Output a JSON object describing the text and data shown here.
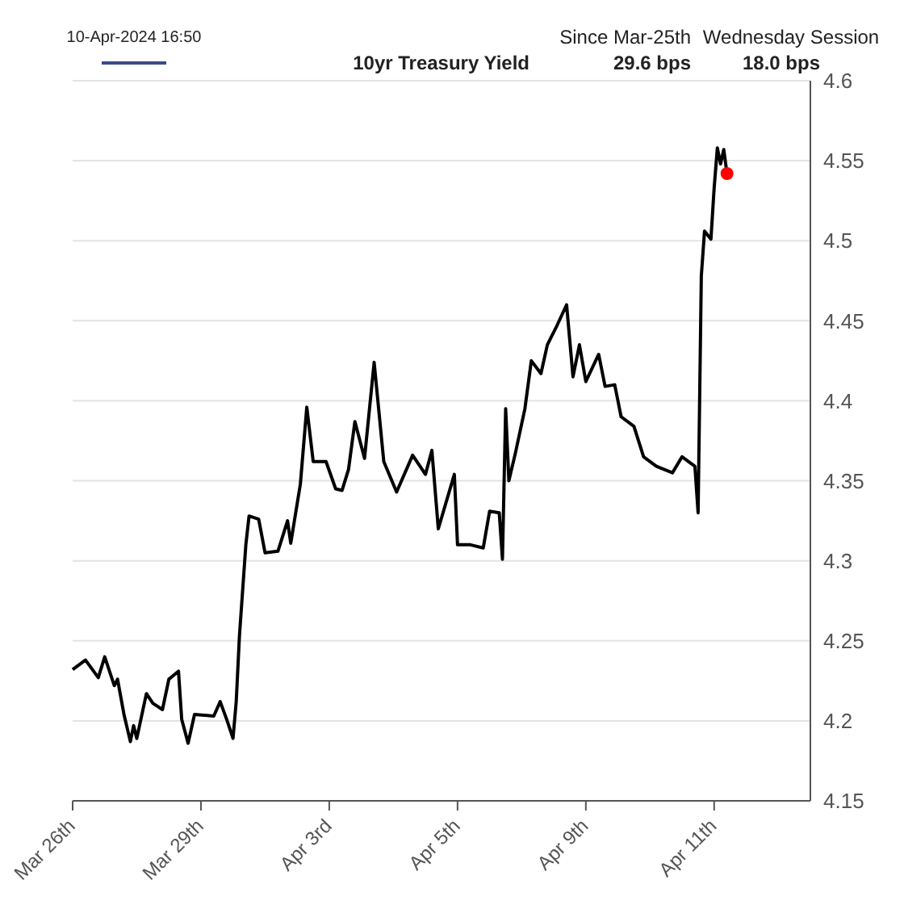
{
  "chart_data": {
    "type": "line",
    "annotations": [
      "10-Apr-2024 16:50",
      "Since Mar-25th",
      "Wednesday Session",
      "29.6 bps",
      "18.0 bps"
    ],
    "categories": [
      "Mar 26th",
      null,
      null,
      null,
      null,
      null,
      null,
      null,
      null,
      null,
      null,
      null,
      null,
      null,
      null,
      null,
      null,
      null,
      null,
      null,
      null,
      null,
      null,
      null,
      null,
      null,
      null,
      null,
      null,
      null,
      null,
      null,
      null,
      null,
      null,
      null,
      null,
      null,
      null,
      null,
      "Mar 29th",
      null,
      null,
      null,
      null,
      null,
      null,
      null,
      null,
      null,
      null,
      null,
      null,
      null,
      null,
      null,
      null,
      null,
      null,
      null,
      null,
      null,
      null,
      null,
      null,
      null,
      null,
      null,
      null,
      null,
      null,
      null,
      null,
      null,
      null,
      null,
      null,
      null,
      null,
      null,
      "Apr 3rd",
      null,
      null,
      null,
      null,
      null,
      null,
      null,
      null,
      null,
      null,
      null,
      null,
      null,
      null,
      null,
      null,
      null,
      null,
      null,
      null,
      null,
      null,
      null,
      null,
      null,
      null,
      null,
      null,
      null,
      null,
      null,
      null,
      null,
      null,
      null,
      null,
      null,
      null,
      null,
      "Apr 5th",
      null,
      null,
      null,
      null,
      null,
      null,
      null,
      null,
      null,
      null,
      null,
      null,
      null,
      null,
      null,
      null,
      null,
      null,
      null,
      null,
      null,
      null,
      null,
      null,
      null,
      null,
      null,
      null,
      null,
      null,
      null,
      null,
      null,
      null,
      null,
      null,
      null,
      null,
      null,
      "Apr 9th",
      null,
      null,
      null,
      null,
      null,
      null,
      null,
      null,
      null,
      null,
      null,
      null,
      null,
      null,
      null,
      null,
      null,
      null,
      null,
      null,
      null,
      null,
      null,
      null,
      null,
      null,
      null,
      null,
      null,
      null,
      null,
      null,
      null,
      null,
      null,
      null,
      null,
      null,
      null,
      "Apr 11th",
      null,
      null,
      null,
      null,
      null,
      null,
      null,
      null,
      null,
      null,
      null,
      null,
      null,
      null,
      null,
      null,
      null,
      null,
      null,
      null,
      null,
      null,
      null,
      null,
      null,
      null,
      null,
      null,
      null,
      null
    ],
    "ylim": [
      4.15,
      4.6
    ],
    "yticks": [
      4.15,
      4.2,
      4.25,
      4.3,
      4.35,
      4.4,
      4.45,
      4.5,
      4.55,
      4.6
    ],
    "grid": "y",
    "legend": false,
    "series": [
      {
        "name": "10yr Treasury Yield",
        "color": "#000000",
        "values": [
          4.232,
          null,
          null,
          null,
          4.238,
          null,
          null,
          null,
          4.227,
          null,
          4.24,
          null,
          null,
          4.222,
          4.226,
          null,
          4.204,
          null,
          4.187,
          4.197,
          4.189,
          null,
          null,
          4.217,
          null,
          4.211,
          null,
          null,
          4.207,
          null,
          4.226,
          null,
          null,
          4.231,
          4.201,
          null,
          4.186,
          null,
          4.204,
          null,
          null,
          null,
          null,
          null,
          4.203,
          null,
          4.212,
          null,
          4.201,
          null,
          4.189,
          4.212,
          4.253,
          null,
          4.31,
          4.328,
          null,
          null,
          4.326,
          null,
          4.305,
          null,
          null,
          null,
          4.306,
          null,
          null,
          4.325,
          4.311,
          null,
          null,
          4.348,
          null,
          4.396,
          null,
          4.362,
          null,
          null,
          null,
          4.362,
          null,
          null,
          4.345,
          null,
          4.344,
          null,
          4.357,
          null,
          4.387,
          null,
          null,
          4.364,
          null,
          null,
          4.424,
          null,
          null,
          4.362,
          null,
          null,
          null,
          4.343,
          null,
          null,
          null,
          null,
          4.366,
          null,
          null,
          null,
          4.354,
          null,
          4.369,
          null,
          4.32,
          null,
          null,
          null,
          null,
          4.354,
          4.31,
          null,
          null,
          null,
          4.31,
          null,
          null,
          null,
          4.308,
          null,
          4.331,
          null,
          null,
          4.33,
          4.301,
          4.395,
          4.35,
          null,
          4.367,
          null,
          null,
          4.395,
          null,
          4.425,
          null,
          null,
          4.417,
          null,
          4.435,
          null,
          null,
          4.447,
          null,
          null,
          4.46,
          null,
          4.415,
          null,
          4.435,
          null,
          4.412,
          null,
          null,
          null,
          4.429,
          null,
          4.409,
          null,
          null,
          4.41,
          null,
          4.39,
          null,
          null,
          null,
          4.384,
          null,
          null,
          4.365,
          null,
          null,
          null,
          4.359,
          null,
          null,
          null,
          null,
          4.355,
          null,
          null,
          4.365,
          null,
          null,
          null,
          4.359,
          4.33,
          4.478,
          4.506,
          null,
          4.501,
          4.533,
          4.558,
          4.548,
          4.557,
          4.542,
          null,
          null,
          null,
          null,
          null,
          null,
          null,
          null,
          null,
          null,
          null,
          null,
          null,
          null,
          null,
          null,
          null,
          null,
          null,
          null,
          null,
          null,
          null,
          null,
          null,
          null
        ]
      },
      {
        "type": "scatter",
        "color": "#ff0000",
        "values": [
          null,
          null,
          null,
          null,
          null,
          null,
          null,
          null,
          null,
          null,
          null,
          null,
          null,
          null,
          null,
          null,
          null,
          null,
          null,
          null,
          null,
          null,
          null,
          null,
          null,
          null,
          null,
          null,
          null,
          null,
          null,
          null,
          null,
          null,
          null,
          null,
          null,
          null,
          null,
          null,
          null,
          null,
          null,
          null,
          null,
          null,
          null,
          null,
          null,
          null,
          null,
          null,
          null,
          null,
          null,
          null,
          null,
          null,
          null,
          null,
          null,
          null,
          null,
          null,
          null,
          null,
          null,
          null,
          null,
          null,
          null,
          null,
          null,
          null,
          null,
          null,
          null,
          null,
          null,
          null,
          null,
          null,
          null,
          null,
          null,
          null,
          null,
          null,
          null,
          null,
          null,
          null,
          null,
          null,
          null,
          null,
          null,
          null,
          null,
          null,
          null,
          null,
          null,
          null,
          null,
          null,
          null,
          null,
          null,
          null,
          null,
          null,
          null,
          null,
          null,
          null,
          null,
          null,
          null,
          null,
          null,
          null,
          null,
          null,
          null,
          null,
          null,
          null,
          null,
          null,
          null,
          null,
          null,
          null,
          null,
          null,
          null,
          null,
          null,
          null,
          null,
          null,
          null,
          null,
          null,
          null,
          null,
          null,
          null,
          null,
          null,
          null,
          null,
          null,
          null,
          null,
          null,
          null,
          null,
          null,
          null,
          null,
          null,
          null,
          null,
          null,
          null,
          null,
          null,
          null,
          null,
          null,
          null,
          null,
          null,
          null,
          null,
          null,
          null,
          null,
          null,
          null,
          null,
          null,
          null,
          null,
          null,
          null,
          null,
          null,
          null,
          null,
          null,
          null,
          null,
          null,
          null,
          null,
          null,
          null,
          null,
          null,
          null,
          null,
          4.542,
          null,
          null,
          null,
          null,
          null,
          null,
          null,
          null,
          null,
          null,
          null,
          null,
          null,
          null,
          null,
          null,
          null,
          null,
          null,
          null,
          null,
          null,
          null,
          null,
          null,
          null
        ]
      }
    ]
  }
}
